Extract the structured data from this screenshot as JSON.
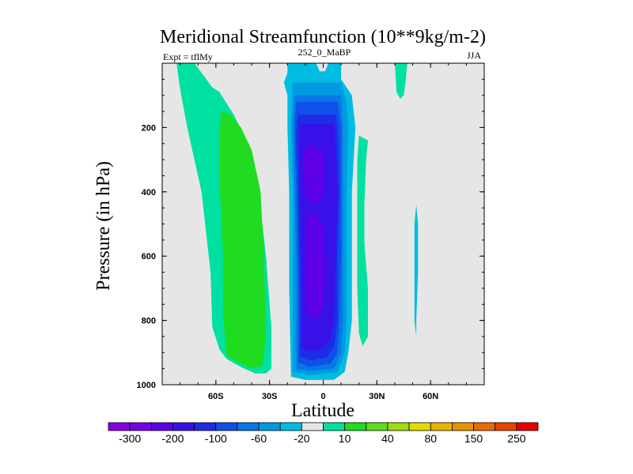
{
  "chart_data": {
    "type": "contour",
    "title": "Meridional Streamfunction (10**9kg/m-2)",
    "left_string": "Expt = tflMy",
    "center_string": "252_0_MaBP",
    "right_string": "JJA",
    "xlabel": "Latitude",
    "ylabel": "Pressure (in hPa)",
    "xlim": [
      -90,
      90
    ],
    "ylim": [
      0,
      1000
    ],
    "y_reversed": true,
    "x_ticks": [
      {
        "value": -60,
        "label": "60S"
      },
      {
        "value": -30,
        "label": "30S"
      },
      {
        "value": 0,
        "label": "0"
      },
      {
        "value": 30,
        "label": "30N"
      },
      {
        "value": 60,
        "label": "60N"
      }
    ],
    "y_ticks": [
      {
        "value": 200,
        "label": "200"
      },
      {
        "value": 400,
        "label": "400"
      },
      {
        "value": 600,
        "label": "600"
      },
      {
        "value": 800,
        "label": "800"
      },
      {
        "value": 1000,
        "label": "1000"
      }
    ],
    "background_color": "#e6e6e6",
    "colorbar": {
      "colors": [
        "#8a00e0",
        "#7600e6",
        "#5e00e8",
        "#3a10e8",
        "#1c2ce8",
        "#1050e8",
        "#0878e6",
        "#009ae2",
        "#00bce2",
        "#e6e6e6",
        "#00e0a0",
        "#20dc20",
        "#60dc20",
        "#a0dc10",
        "#e0dc00",
        "#e8b400",
        "#e89000",
        "#e86c00",
        "#e84400",
        "#e80000"
      ],
      "labels": [
        {
          "boundary": 1,
          "text": "-300"
        },
        {
          "boundary": 3,
          "text": "-200"
        },
        {
          "boundary": 5,
          "text": "-100"
        },
        {
          "boundary": 7,
          "text": "-60"
        },
        {
          "boundary": 9,
          "text": "-20"
        },
        {
          "boundary": 11,
          "text": "10"
        },
        {
          "boundary": 13,
          "text": "40"
        },
        {
          "boundary": 15,
          "text": "80"
        },
        {
          "boundary": 17,
          "text": "150"
        },
        {
          "boundary": 19,
          "text": "250"
        }
      ]
    },
    "regions": [
      {
        "name": "sh-outer-positive",
        "color": "#00e0a0",
        "points": [
          [
            -82,
            0
          ],
          [
            -72,
            0
          ],
          [
            -62,
            75
          ],
          [
            -58,
            90
          ],
          [
            -50,
            160
          ],
          [
            -42,
            250
          ],
          [
            -36,
            400
          ],
          [
            -32,
            600
          ],
          [
            -29,
            820
          ],
          [
            -29,
            950
          ],
          [
            -32,
            965
          ],
          [
            -38,
            965
          ],
          [
            -46,
            945
          ],
          [
            -54,
            920
          ],
          [
            -58,
            890
          ],
          [
            -62,
            820
          ],
          [
            -63,
            650
          ],
          [
            -68,
            400
          ],
          [
            -76,
            200
          ],
          [
            -80,
            80
          ]
        ]
      },
      {
        "name": "sh-inner-positive",
        "color": "#20dc20",
        "points": [
          [
            -57,
            150
          ],
          [
            -52,
            160
          ],
          [
            -46,
            200
          ],
          [
            -40,
            270
          ],
          [
            -35,
            400
          ],
          [
            -33,
            620
          ],
          [
            -32,
            850
          ],
          [
            -34,
            940
          ],
          [
            -40,
            950
          ],
          [
            -46,
            935
          ],
          [
            -54,
            910
          ],
          [
            -56,
            780
          ],
          [
            -56,
            600
          ],
          [
            -58,
            350
          ],
          [
            -58,
            220
          ]
        ]
      },
      {
        "name": "negative-lvl-20",
        "color": "#00bce2",
        "points": [
          [
            -20,
            0
          ],
          [
            -4,
            0
          ],
          [
            -2,
            25
          ],
          [
            1,
            25
          ],
          [
            3,
            0
          ],
          [
            10,
            0
          ],
          [
            10,
            50
          ],
          [
            16,
            100
          ],
          [
            18,
            200
          ],
          [
            16,
            400
          ],
          [
            16,
            600
          ],
          [
            16,
            800
          ],
          [
            14,
            900
          ],
          [
            12,
            960
          ],
          [
            6,
            985
          ],
          [
            -10,
            985
          ],
          [
            -18,
            975
          ],
          [
            -19,
            700
          ],
          [
            -19,
            400
          ],
          [
            -20,
            200
          ],
          [
            -20,
            100
          ],
          [
            -22,
            60
          ],
          [
            -20,
            30
          ]
        ]
      },
      {
        "name": "negative-lvl-40",
        "color": "#009ae2",
        "points": [
          [
            -17,
            60
          ],
          [
            10,
            60
          ],
          [
            13,
            120
          ],
          [
            14,
            200
          ],
          [
            13,
            400
          ],
          [
            13,
            600
          ],
          [
            13,
            800
          ],
          [
            12,
            900
          ],
          [
            8,
            960
          ],
          [
            -8,
            970
          ],
          [
            -17,
            960
          ],
          [
            -17,
            700
          ],
          [
            -17,
            400
          ],
          [
            -18,
            200
          ]
        ]
      },
      {
        "name": "negative-lvl-60",
        "color": "#0878e6",
        "points": [
          [
            -16,
            100
          ],
          [
            10,
            100
          ],
          [
            11,
            200
          ],
          [
            11,
            400
          ],
          [
            11,
            600
          ],
          [
            11,
            800
          ],
          [
            10,
            900
          ],
          [
            6,
            950
          ],
          [
            -8,
            958
          ],
          [
            -15,
            950
          ],
          [
            -15,
            700
          ],
          [
            -16,
            400
          ],
          [
            -17,
            200
          ]
        ]
      },
      {
        "name": "negative-lvl-80",
        "color": "#1050e8",
        "points": [
          [
            -15,
            120
          ],
          [
            8,
            120
          ],
          [
            10,
            200
          ],
          [
            10,
            400
          ],
          [
            10,
            600
          ],
          [
            9,
            800
          ],
          [
            8,
            900
          ],
          [
            4,
            935
          ],
          [
            -8,
            945
          ],
          [
            -14,
            930
          ],
          [
            -14,
            700
          ],
          [
            -15,
            400
          ],
          [
            -16,
            200
          ]
        ]
      },
      {
        "name": "negative-lvl-100",
        "color": "#1c2ce8",
        "points": [
          [
            -14,
            160
          ],
          [
            7,
            160
          ],
          [
            8,
            200
          ],
          [
            9,
            400
          ],
          [
            8,
            600
          ],
          [
            8,
            800
          ],
          [
            6,
            880
          ],
          [
            2,
            915
          ],
          [
            -8,
            925
          ],
          [
            -13,
            910
          ],
          [
            -13,
            700
          ],
          [
            -14,
            400
          ],
          [
            -15,
            220
          ]
        ]
      },
      {
        "name": "negative-lvl-150",
        "color": "#3a10e8",
        "points": [
          [
            -13,
            190
          ],
          [
            6,
            190
          ],
          [
            7,
            260
          ],
          [
            8,
            400
          ],
          [
            7,
            600
          ],
          [
            6,
            800
          ],
          [
            4,
            860
          ],
          [
            -1,
            890
          ],
          [
            -9,
            895
          ],
          [
            -12,
            880
          ],
          [
            -12,
            700
          ],
          [
            -13,
            400
          ],
          [
            -13,
            250
          ]
        ]
      },
      {
        "name": "negative-core-a",
        "color": "#5e00e8",
        "points": [
          [
            -10,
            260
          ],
          [
            -5,
            255
          ],
          [
            0,
            280
          ],
          [
            1,
            350
          ],
          [
            -1,
            420
          ],
          [
            -4,
            440
          ],
          [
            -9,
            430
          ],
          [
            -11,
            360
          ],
          [
            -11,
            300
          ]
        ]
      },
      {
        "name": "negative-core-b",
        "color": "#5e00e8",
        "points": [
          [
            -9,
            470
          ],
          [
            -3,
            470
          ],
          [
            0,
            520
          ],
          [
            1,
            650
          ],
          [
            0,
            760
          ],
          [
            -3,
            790
          ],
          [
            -8,
            790
          ],
          [
            -10,
            720
          ],
          [
            -10,
            580
          ]
        ]
      },
      {
        "name": "nh-strip-positive",
        "color": "#00e0a0",
        "points": [
          [
            20,
            225
          ],
          [
            25,
            240
          ],
          [
            24,
            300
          ],
          [
            23,
            440
          ],
          [
            23,
            560
          ],
          [
            25,
            700
          ],
          [
            25,
            850
          ],
          [
            22,
            880
          ],
          [
            20,
            840
          ],
          [
            19,
            700
          ],
          [
            19,
            560
          ],
          [
            19,
            440
          ],
          [
            19,
            300
          ]
        ]
      },
      {
        "name": "nh-top-positive",
        "color": "#00e0a0",
        "points": [
          [
            40,
            0
          ],
          [
            47,
            0
          ],
          [
            46,
            60
          ],
          [
            45,
            100
          ],
          [
            43,
            110
          ],
          [
            41,
            90
          ]
        ]
      },
      {
        "name": "nh-negative-strip",
        "color": "#00bce2",
        "points": [
          [
            52,
            440
          ],
          [
            53,
            500
          ],
          [
            53,
            650
          ],
          [
            52,
            800
          ],
          [
            52,
            850
          ],
          [
            51,
            800
          ],
          [
            51,
            650
          ],
          [
            51,
            500
          ]
        ]
      }
    ]
  }
}
